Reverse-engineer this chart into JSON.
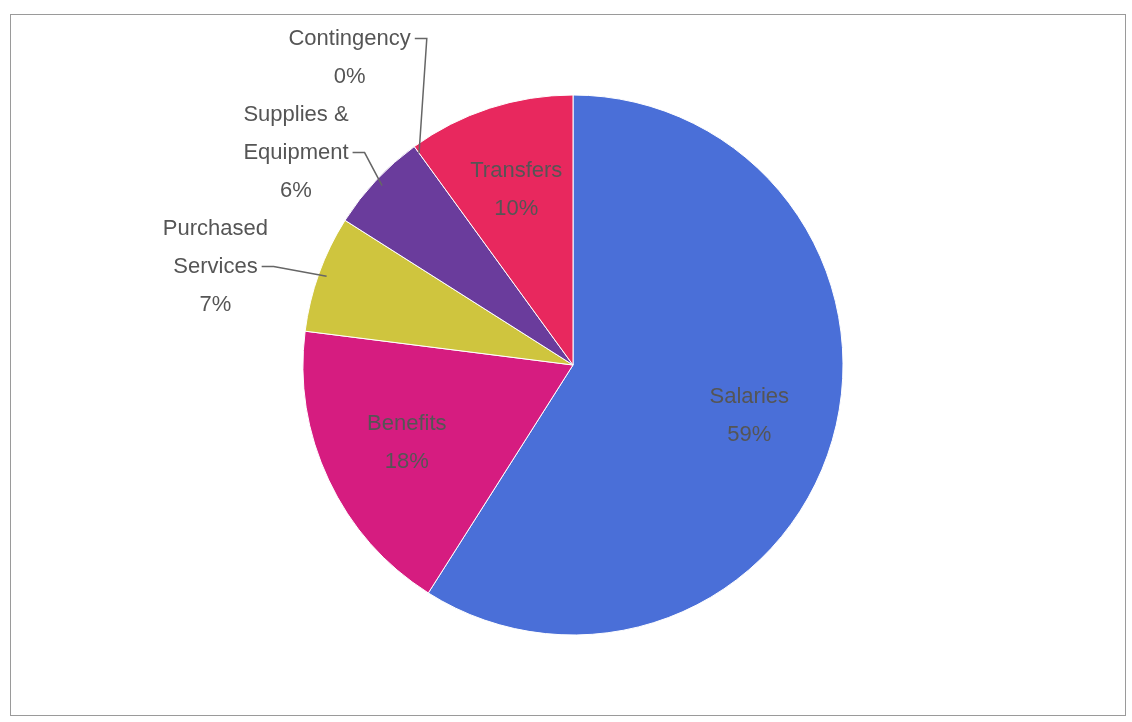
{
  "chart_data": {
    "type": "pie",
    "categories": [
      "Salaries",
      "Benefits",
      "Purchased Services",
      "Supplies & Equipment",
      "Contingency",
      "Transfers"
    ],
    "values": [
      59,
      18,
      7,
      6,
      0,
      10
    ],
    "colors": [
      "#4a6fd8",
      "#d61c80",
      "#cfc53e",
      "#6a3c9c",
      "#4a90e0",
      "#e8285e"
    ],
    "value_labels": [
      "59%",
      "18%",
      "7%",
      "6%",
      "0%",
      "10%"
    ],
    "legend": false
  }
}
